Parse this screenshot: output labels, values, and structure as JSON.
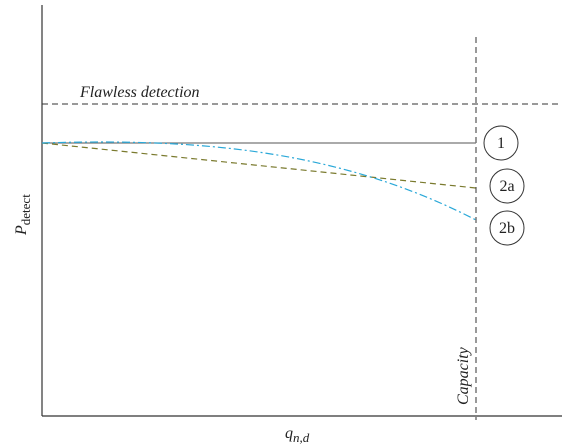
{
  "annotations": {
    "flawless": "Flawless detection",
    "capacity": "Capacity"
  },
  "curves": {
    "c1": "1",
    "c2a": "2a",
    "c2b": "2b"
  },
  "y_axis": {
    "main": "P",
    "sub": "detect"
  },
  "x_axis": {
    "main": "q",
    "sub": "n,d"
  }
}
